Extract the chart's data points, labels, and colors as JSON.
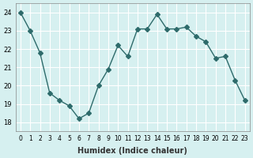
{
  "x": [
    0,
    1,
    2,
    3,
    4,
    5,
    6,
    7,
    8,
    9,
    10,
    11,
    12,
    13,
    14,
    15,
    16,
    17,
    18,
    19,
    20,
    21,
    22,
    23
  ],
  "y": [
    24.0,
    23.0,
    21.8,
    19.6,
    19.2,
    18.9,
    18.2,
    18.5,
    20.0,
    20.9,
    22.2,
    21.6,
    23.1,
    23.1,
    23.9,
    23.1,
    23.1,
    23.2,
    22.7,
    22.4,
    21.5,
    21.6,
    20.3,
    19.2
  ],
  "line_color": "#2e6b6b",
  "marker": "D",
  "marker_size": 3,
  "bg_color": "#d6f0f0",
  "grid_color": "#ffffff",
  "xlabel": "Humidex (Indice chaleur)",
  "ylim": [
    17.5,
    24.5
  ],
  "xlim": [
    -0.5,
    23.5
  ],
  "yticks": [
    18,
    19,
    20,
    21,
    22,
    23,
    24
  ],
  "xtick_labels": [
    "0",
    "1",
    "2",
    "3",
    "4",
    "5",
    "6",
    "7",
    "8",
    "9",
    "10",
    "11",
    "12",
    "13",
    "14",
    "15",
    "16",
    "17",
    "18",
    "19",
    "20",
    "21",
    "22",
    "23"
  ]
}
